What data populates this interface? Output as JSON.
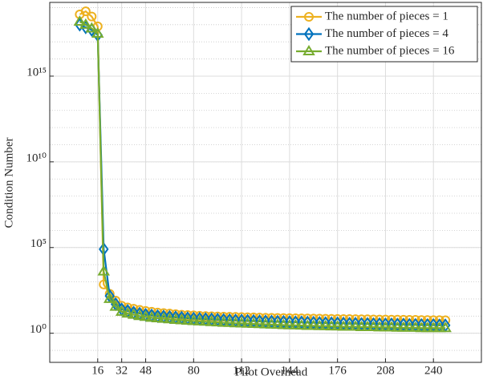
{
  "chart_data": {
    "type": "line",
    "xlabel": "Pilot Overhead",
    "ylabel": "Condition Number",
    "x": [
      4,
      8,
      12,
      16,
      20,
      24,
      28,
      32,
      36,
      40,
      44,
      48,
      52,
      56,
      60,
      64,
      68,
      72,
      76,
      80,
      84,
      88,
      92,
      96,
      100,
      104,
      108,
      112,
      116,
      120,
      124,
      128,
      132,
      136,
      140,
      144,
      148,
      152,
      156,
      160,
      164,
      168,
      172,
      176,
      180,
      184,
      188,
      192,
      196,
      200,
      204,
      208,
      212,
      216,
      220,
      224,
      228,
      232,
      236,
      240,
      244,
      248
    ],
    "series": [
      {
        "name": "The number of pieces = 1",
        "color": "#EDB120",
        "marker": "circle",
        "values": [
          4e+18,
          6e+18,
          3e+18,
          8e+17,
          700,
          200,
          80,
          40,
          32,
          27,
          23,
          20,
          18,
          16,
          15,
          14,
          13,
          12,
          11.5,
          11,
          10.5,
          10,
          9.8,
          9.5,
          9.3,
          9.1,
          9,
          8.8,
          8.6,
          8.4,
          8.2,
          8,
          7.9,
          7.8,
          7.7,
          7.6,
          7.5,
          7.4,
          7.3,
          7.2,
          7.1,
          7,
          6.9,
          6.8,
          6.7,
          6.7,
          6.6,
          6.5,
          6.5,
          6.4,
          6.3,
          6.3,
          6.2,
          6.2,
          6.1,
          6,
          6,
          5.9,
          5.9,
          5.8,
          5.8,
          5.7
        ]
      },
      {
        "name": "The number of pieces = 4",
        "color": "#0072BD",
        "marker": "diamond",
        "values": [
          1e+18,
          7e+17,
          5e+17,
          2.5e+17,
          80000,
          150,
          50,
          25,
          20,
          16,
          14,
          12,
          11,
          10,
          9.5,
          9,
          8.5,
          8,
          7.5,
          7.2,
          7,
          6.7,
          6.5,
          6.2,
          6,
          5.8,
          5.6,
          5.5,
          5.3,
          5.2,
          5,
          4.9,
          4.8,
          4.7,
          4.6,
          4.5,
          4.4,
          4.3,
          4.2,
          4.1,
          4,
          3.9,
          3.8,
          3.8,
          3.7,
          3.6,
          3.6,
          3.5,
          3.5,
          3.4,
          3.4,
          3.3,
          3.3,
          3.2,
          3.2,
          3.1,
          3.1,
          3,
          3,
          3,
          2.9,
          2.9
        ]
      },
      {
        "name": "The number of pieces = 16",
        "color": "#77AC30",
        "marker": "triangle",
        "values": [
          1.5e+18,
          1e+18,
          6e+17,
          3e+17,
          4000,
          100,
          35,
          18,
          14,
          12,
          10,
          9,
          8,
          7.5,
          7,
          6.5,
          6,
          5.7,
          5.4,
          5.1,
          4.9,
          4.7,
          4.5,
          4.3,
          4.1,
          4,
          3.8,
          3.7,
          3.6,
          3.5,
          3.4,
          3.3,
          3.2,
          3.1,
          3,
          2.9,
          2.9,
          2.8,
          2.7,
          2.7,
          2.6,
          2.6,
          2.5,
          2.5,
          2.4,
          2.4,
          2.4,
          2.3,
          2.3,
          2.3,
          2.2,
          2.2,
          2.2,
          2.1,
          2.1,
          2.1,
          2.1,
          2,
          2,
          2,
          2,
          2
        ]
      }
    ],
    "xlim": [
      -16,
      272
    ],
    "xticks": [
      16,
      32,
      48,
      80,
      112,
      144,
      176,
      208,
      240
    ],
    "ylim": [
      0.02,
      2e+19
    ],
    "ylog": true,
    "yticks": [
      {
        "value": 1,
        "label": "10⁰"
      },
      {
        "value": 100000,
        "label": "10⁵"
      },
      {
        "value": 10000000000,
        "label": "10¹⁰"
      },
      {
        "value": 1000000000000000,
        "label": "10¹⁵"
      }
    ],
    "grid": true,
    "minor_grid": true,
    "legend": "northeast"
  }
}
